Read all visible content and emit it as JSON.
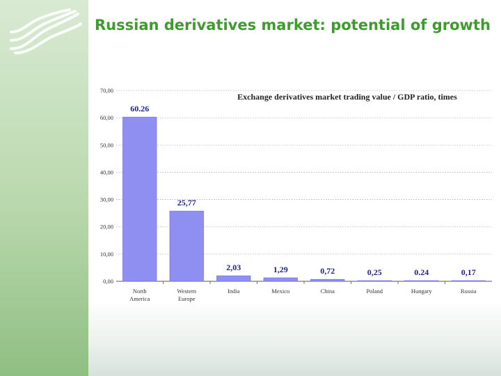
{
  "slide": {
    "title": "Russian derivatives market: potential of growth"
  },
  "colors": {
    "title": "#3f9a2f",
    "bar": "#8f8ff2",
    "bar_edge": "#6a6adf",
    "label": "#1f1f8f",
    "sidebar": "#b9d8ad"
  },
  "logo": {
    "icon": "stylized-s-logo-icon"
  },
  "chart_data": {
    "type": "bar",
    "title": "Exchange derivatives market trading value / GDP ratio, times",
    "categories": [
      "North America",
      "Western Europe",
      "India",
      "Mexico",
      "China",
      "Poland",
      "Hungary",
      "Russia"
    ],
    "values": [
      60.26,
      25.77,
      2.03,
      1.29,
      0.72,
      0.25,
      0.24,
      0.17
    ],
    "data_labels": [
      "60.26",
      "25,77",
      "2,03",
      "1,29",
      "0,72",
      "0,25",
      "0.24",
      "0,17"
    ],
    "ylim": [
      0,
      70
    ],
    "yticks": [
      "0,00",
      "10,00",
      "20,00",
      "30,00",
      "40,00",
      "50,00",
      "60,00",
      "70,00"
    ],
    "grid": true,
    "xlabel": "",
    "ylabel": ""
  }
}
